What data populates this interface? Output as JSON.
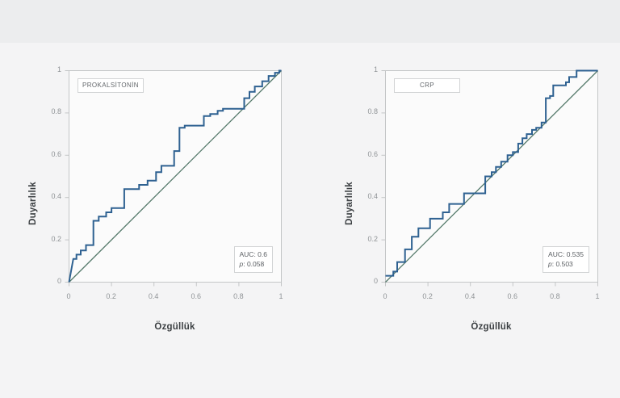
{
  "page": {
    "top_strip_color": "#ecedee",
    "card_color": "#f4f4f5"
  },
  "chart_data": [
    {
      "type": "line",
      "subtype": "roc-step-curve",
      "title": "PROKALSİTONİN",
      "xlabel": "Özgüllük",
      "ylabel": "Duyarlılık",
      "xlim": [
        0,
        1
      ],
      "ylim": [
        0,
        1
      ],
      "grid": false,
      "legend_position": "top-left-inset-box",
      "x_ticks": [
        "0",
        "0.2",
        "0.4",
        "0.6",
        "0.8",
        "1"
      ],
      "y_ticks": [
        "0",
        "0.2",
        "0.4",
        "0.6",
        "0.8",
        "1"
      ],
      "stats": {
        "auc_text": "AUC: 0.6",
        "p_prefix": "p",
        "p_rest": ": 0.058"
      },
      "colors": {
        "curve": "#2e6191",
        "reference": "#54796a",
        "frame": "#c4c6c7",
        "panel": "#fbfbfb"
      },
      "series": [
        {
          "name": "ROC curve",
          "points": [
            [
              0,
              0
            ],
            [
              0.02,
              0.11
            ],
            [
              0.035,
              0.11
            ],
            [
              0.035,
              0.13
            ],
            [
              0.055,
              0.13
            ],
            [
              0.055,
              0.15
            ],
            [
              0.08,
              0.15
            ],
            [
              0.08,
              0.175
            ],
            [
              0.115,
              0.175
            ],
            [
              0.115,
              0.29
            ],
            [
              0.14,
              0.29
            ],
            [
              0.14,
              0.31
            ],
            [
              0.175,
              0.31
            ],
            [
              0.175,
              0.33
            ],
            [
              0.2,
              0.33
            ],
            [
              0.2,
              0.35
            ],
            [
              0.26,
              0.35
            ],
            [
              0.26,
              0.44
            ],
            [
              0.33,
              0.44
            ],
            [
              0.33,
              0.46
            ],
            [
              0.37,
              0.46
            ],
            [
              0.37,
              0.48
            ],
            [
              0.41,
              0.48
            ],
            [
              0.41,
              0.52
            ],
            [
              0.435,
              0.52
            ],
            [
              0.435,
              0.55
            ],
            [
              0.495,
              0.55
            ],
            [
              0.495,
              0.62
            ],
            [
              0.52,
              0.62
            ],
            [
              0.52,
              0.73
            ],
            [
              0.545,
              0.73
            ],
            [
              0.545,
              0.74
            ],
            [
              0.635,
              0.74
            ],
            [
              0.635,
              0.785
            ],
            [
              0.665,
              0.785
            ],
            [
              0.665,
              0.795
            ],
            [
              0.7,
              0.795
            ],
            [
              0.7,
              0.81
            ],
            [
              0.725,
              0.81
            ],
            [
              0.725,
              0.82
            ],
            [
              0.825,
              0.82
            ],
            [
              0.825,
              0.87
            ],
            [
              0.85,
              0.87
            ],
            [
              0.85,
              0.9
            ],
            [
              0.875,
              0.9
            ],
            [
              0.875,
              0.925
            ],
            [
              0.91,
              0.925
            ],
            [
              0.91,
              0.95
            ],
            [
              0.94,
              0.95
            ],
            [
              0.94,
              0.975
            ],
            [
              0.97,
              0.975
            ],
            [
              0.97,
              0.99
            ],
            [
              0.99,
              0.99
            ],
            [
              0.99,
              1
            ],
            [
              1,
              1
            ]
          ]
        },
        {
          "name": "reference diagonal",
          "points": [
            [
              0,
              0
            ],
            [
              1,
              1
            ]
          ]
        }
      ]
    },
    {
      "type": "line",
      "subtype": "roc-step-curve",
      "title": "CRP",
      "xlabel": "Özgüllük",
      "ylabel": "Duyarlılık",
      "xlim": [
        0,
        1
      ],
      "ylim": [
        0,
        1
      ],
      "grid": false,
      "legend_position": "top-left-inset-box",
      "x_ticks": [
        "0",
        "0.2",
        "0.4",
        "0.6",
        "0.8",
        "1"
      ],
      "y_ticks": [
        "0",
        "0.2",
        "0.4",
        "0.6",
        "0.8",
        "1"
      ],
      "stats": {
        "auc_text": "AUC: 0.535",
        "p_prefix": "p",
        "p_rest": ": 0.503"
      },
      "colors": {
        "curve": "#2e6191",
        "reference": "#54796a",
        "frame": "#c4c6c7",
        "panel": "#fbfbfb"
      },
      "series": [
        {
          "name": "ROC curve",
          "points": [
            [
              0,
              0.03
            ],
            [
              0.037,
              0.03
            ],
            [
              0.037,
              0.05
            ],
            [
              0.055,
              0.05
            ],
            [
              0.055,
              0.095
            ],
            [
              0.092,
              0.095
            ],
            [
              0.092,
              0.155
            ],
            [
              0.124,
              0.155
            ],
            [
              0.124,
              0.215
            ],
            [
              0.155,
              0.215
            ],
            [
              0.155,
              0.255
            ],
            [
              0.21,
              0.255
            ],
            [
              0.21,
              0.3
            ],
            [
              0.27,
              0.3
            ],
            [
              0.27,
              0.33
            ],
            [
              0.3,
              0.33
            ],
            [
              0.3,
              0.37
            ],
            [
              0.37,
              0.37
            ],
            [
              0.37,
              0.42
            ],
            [
              0.47,
              0.42
            ],
            [
              0.47,
              0.5
            ],
            [
              0.5,
              0.5
            ],
            [
              0.5,
              0.52
            ],
            [
              0.52,
              0.52
            ],
            [
              0.52,
              0.545
            ],
            [
              0.545,
              0.545
            ],
            [
              0.545,
              0.57
            ],
            [
              0.575,
              0.57
            ],
            [
              0.575,
              0.6
            ],
            [
              0.6,
              0.6
            ],
            [
              0.6,
              0.615
            ],
            [
              0.625,
              0.615
            ],
            [
              0.625,
              0.655
            ],
            [
              0.645,
              0.655
            ],
            [
              0.645,
              0.68
            ],
            [
              0.665,
              0.68
            ],
            [
              0.665,
              0.7
            ],
            [
              0.69,
              0.7
            ],
            [
              0.69,
              0.72
            ],
            [
              0.71,
              0.72
            ],
            [
              0.71,
              0.73
            ],
            [
              0.735,
              0.73
            ],
            [
              0.735,
              0.755
            ],
            [
              0.755,
              0.755
            ],
            [
              0.755,
              0.87
            ],
            [
              0.775,
              0.87
            ],
            [
              0.775,
              0.88
            ],
            [
              0.79,
              0.88
            ],
            [
              0.79,
              0.93
            ],
            [
              0.85,
              0.93
            ],
            [
              0.85,
              0.945
            ],
            [
              0.865,
              0.945
            ],
            [
              0.865,
              0.97
            ],
            [
              0.9,
              0.97
            ],
            [
              0.9,
              1
            ],
            [
              1,
              1
            ]
          ]
        },
        {
          "name": "reference diagonal",
          "points": [
            [
              0,
              0
            ],
            [
              1,
              1
            ]
          ]
        }
      ]
    }
  ]
}
